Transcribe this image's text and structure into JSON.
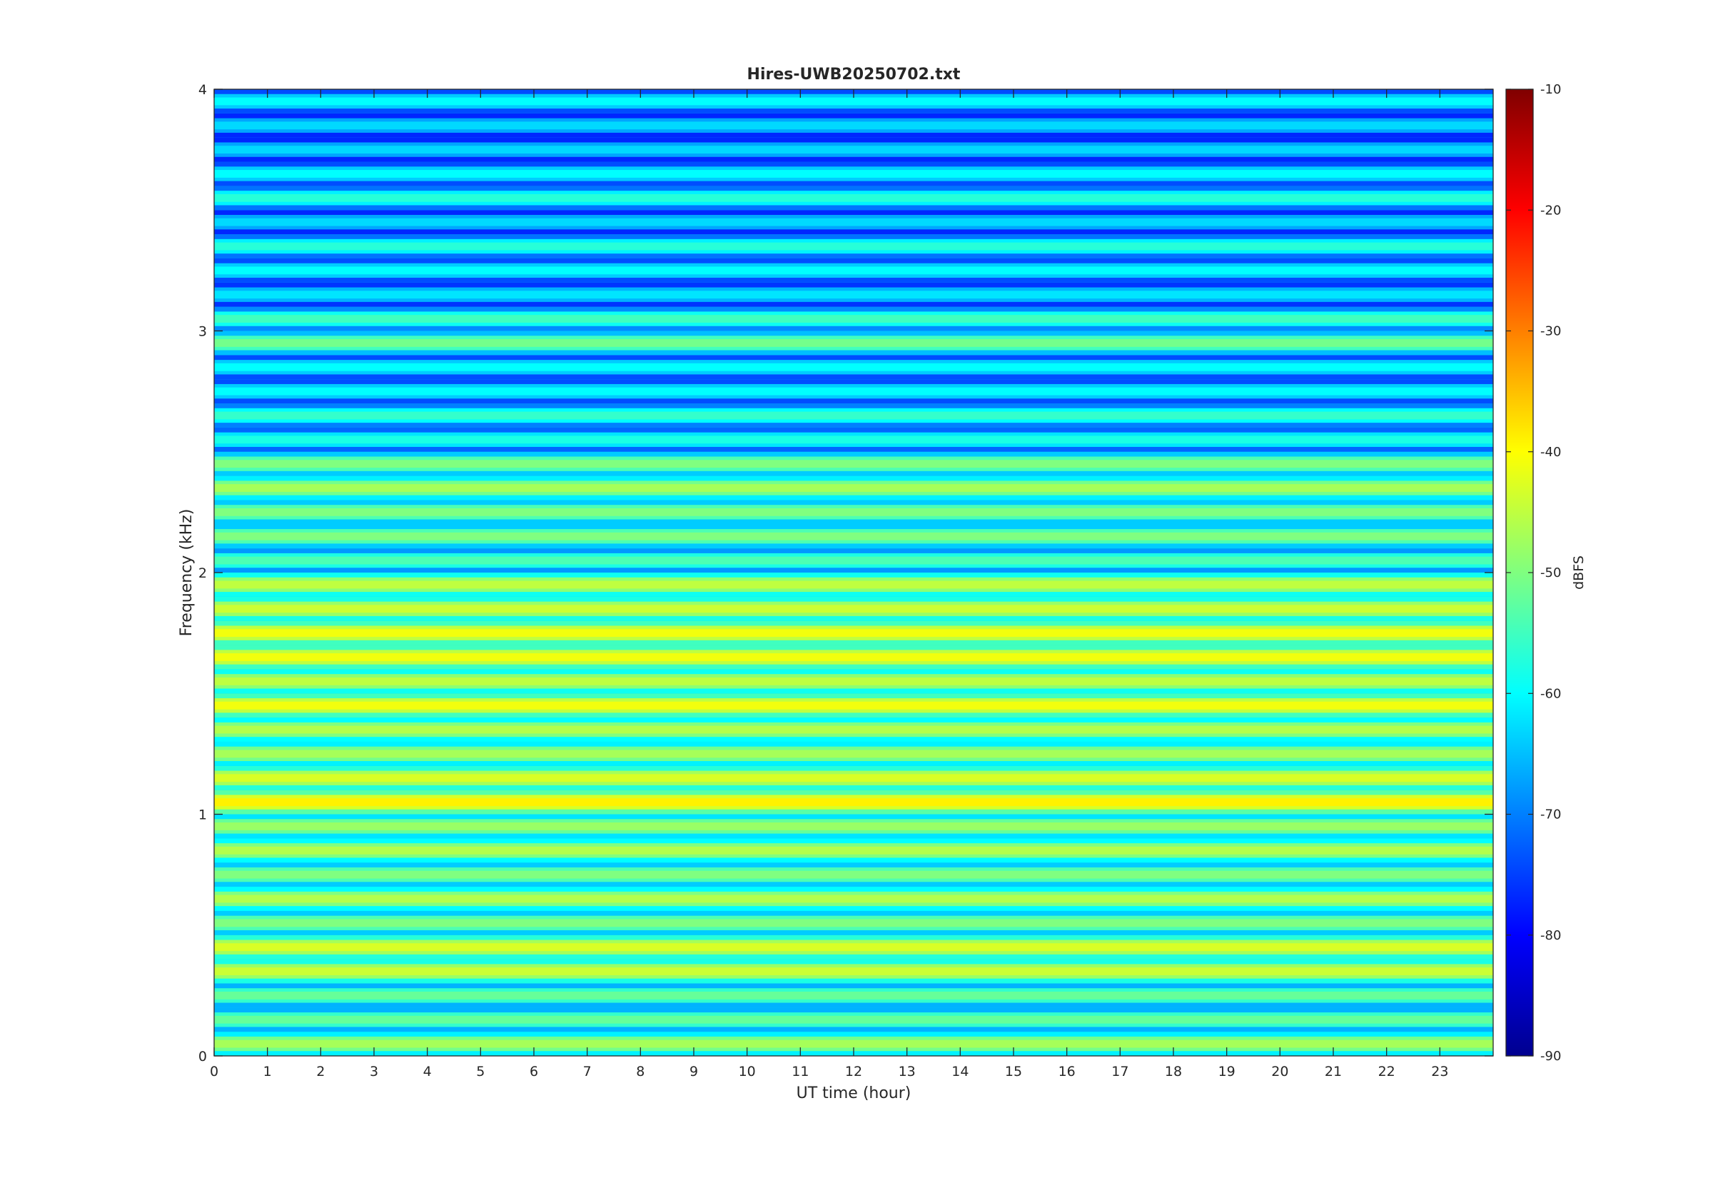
{
  "chart_data": {
    "type": "heatmap",
    "title": "Hires-UWB20250702.txt",
    "xlabel": "UT time (hour)",
    "ylabel": "Frequency (kHz)",
    "xlim": [
      0,
      24
    ],
    "ylim": [
      0,
      4
    ],
    "x_ticks": [
      "0",
      "1",
      "2",
      "3",
      "4",
      "5",
      "6",
      "7",
      "8",
      "9",
      "10",
      "11",
      "12",
      "13",
      "14",
      "15",
      "16",
      "17",
      "18",
      "19",
      "20",
      "21",
      "22",
      "23"
    ],
    "y_ticks": [
      "0",
      "1",
      "2",
      "3",
      "4"
    ],
    "colorbar": {
      "label": "dBFS",
      "range": [
        -90,
        -10
      ],
      "ticks": [
        "-10",
        "-20",
        "-30",
        "-40",
        "-50",
        "-60",
        "-70",
        "-80",
        "-90"
      ],
      "colormap": "jet"
    },
    "grid": false,
    "band_spacing_khz": 0.1,
    "bands": [
      {
        "f": 0.05,
        "level": -47
      },
      {
        "f": 0.15,
        "level": -52
      },
      {
        "f": 0.25,
        "level": -52
      },
      {
        "f": 0.35,
        "level": -44
      },
      {
        "f": 0.45,
        "level": -43
      },
      {
        "f": 0.55,
        "level": -50
      },
      {
        "f": 0.65,
        "level": -46
      },
      {
        "f": 0.75,
        "level": -50
      },
      {
        "f": 0.85,
        "level": -46
      },
      {
        "f": 0.95,
        "level": -48
      },
      {
        "f": 1.05,
        "level": -39
      },
      {
        "f": 1.15,
        "level": -43
      },
      {
        "f": 1.25,
        "level": -47
      },
      {
        "f": 1.35,
        "level": -46
      },
      {
        "f": 1.45,
        "level": -41
      },
      {
        "f": 1.55,
        "level": -45
      },
      {
        "f": 1.65,
        "level": -41
      },
      {
        "f": 1.75,
        "level": -41
      },
      {
        "f": 1.85,
        "level": -44
      },
      {
        "f": 1.95,
        "level": -45
      },
      {
        "f": 2.05,
        "level": -54
      },
      {
        "f": 2.15,
        "level": -50
      },
      {
        "f": 2.25,
        "level": -50
      },
      {
        "f": 2.35,
        "level": -47
      },
      {
        "f": 2.45,
        "level": -50
      },
      {
        "f": 2.55,
        "level": -58
      },
      {
        "f": 2.65,
        "level": -56
      },
      {
        "f": 2.75,
        "level": -60
      },
      {
        "f": 2.85,
        "level": -60
      },
      {
        "f": 2.95,
        "level": -51
      },
      {
        "f": 3.05,
        "level": -55
      },
      {
        "f": 3.15,
        "level": -62
      },
      {
        "f": 3.25,
        "level": -60
      },
      {
        "f": 3.35,
        "level": -57
      },
      {
        "f": 3.45,
        "level": -63
      },
      {
        "f": 3.55,
        "level": -57
      },
      {
        "f": 3.65,
        "level": -60
      },
      {
        "f": 3.75,
        "level": -63
      },
      {
        "f": 3.85,
        "level": -63
      },
      {
        "f": 3.95,
        "level": -60
      }
    ]
  }
}
